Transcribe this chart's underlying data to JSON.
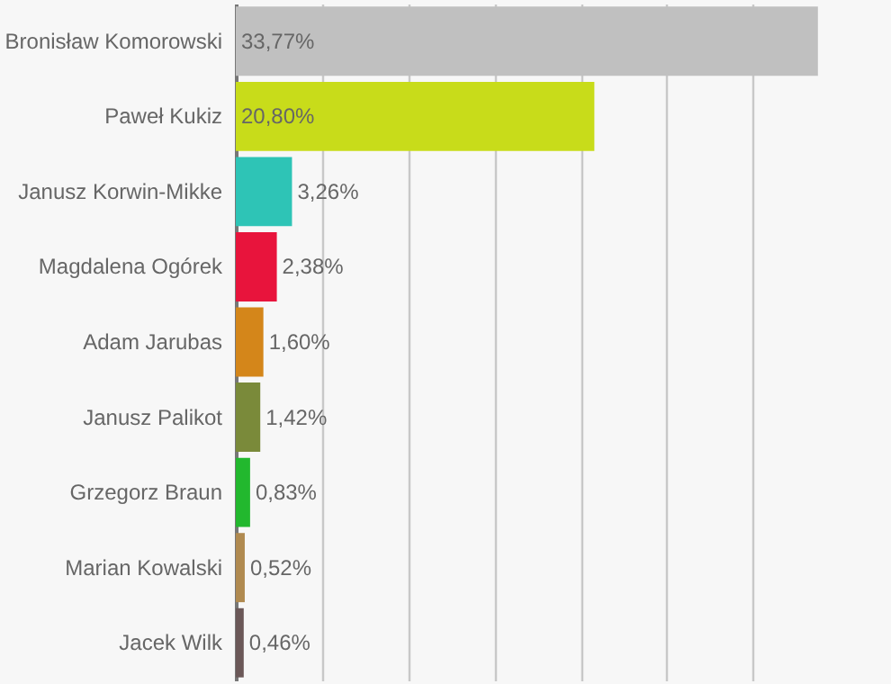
{
  "chart_data": {
    "type": "bar",
    "orientation": "horizontal",
    "categories": [
      "Bronisław Komorowski",
      "Paweł Kukiz",
      "Janusz Korwin-Mikke",
      "Magdalena Ogórek",
      "Adam Jarubas",
      "Janusz Palikot",
      "Grzegorz Braun",
      "Marian Kowalski",
      "Jacek Wilk"
    ],
    "values": [
      33.77,
      20.8,
      3.26,
      2.38,
      1.6,
      1.42,
      0.83,
      0.52,
      0.46
    ],
    "colors": [
      "#c0c0c0",
      "#c8dc1a",
      "#2ec4b6",
      "#e8143c",
      "#d4861a",
      "#7a8a3a",
      "#22b82e",
      "#b08a50",
      "#6b5858"
    ],
    "value_labels": [
      "33,77%",
      "20,80%",
      "3,26%",
      "2,38%",
      "1,60%",
      "1,42%",
      "0,83%",
      "0,52%",
      "0,46%"
    ],
    "xlim": [
      0,
      37.8
    ],
    "xticks": [
      {
        "value": 5,
        "label": null
      },
      {
        "value": 10,
        "label": null
      },
      {
        "value": 15,
        "label": null
      },
      {
        "value": 20,
        "label": null
      },
      {
        "value": 25,
        "label": null
      },
      {
        "value": 30,
        "label": null
      }
    ],
    "grid": "x",
    "tick_labels": "y"
  }
}
